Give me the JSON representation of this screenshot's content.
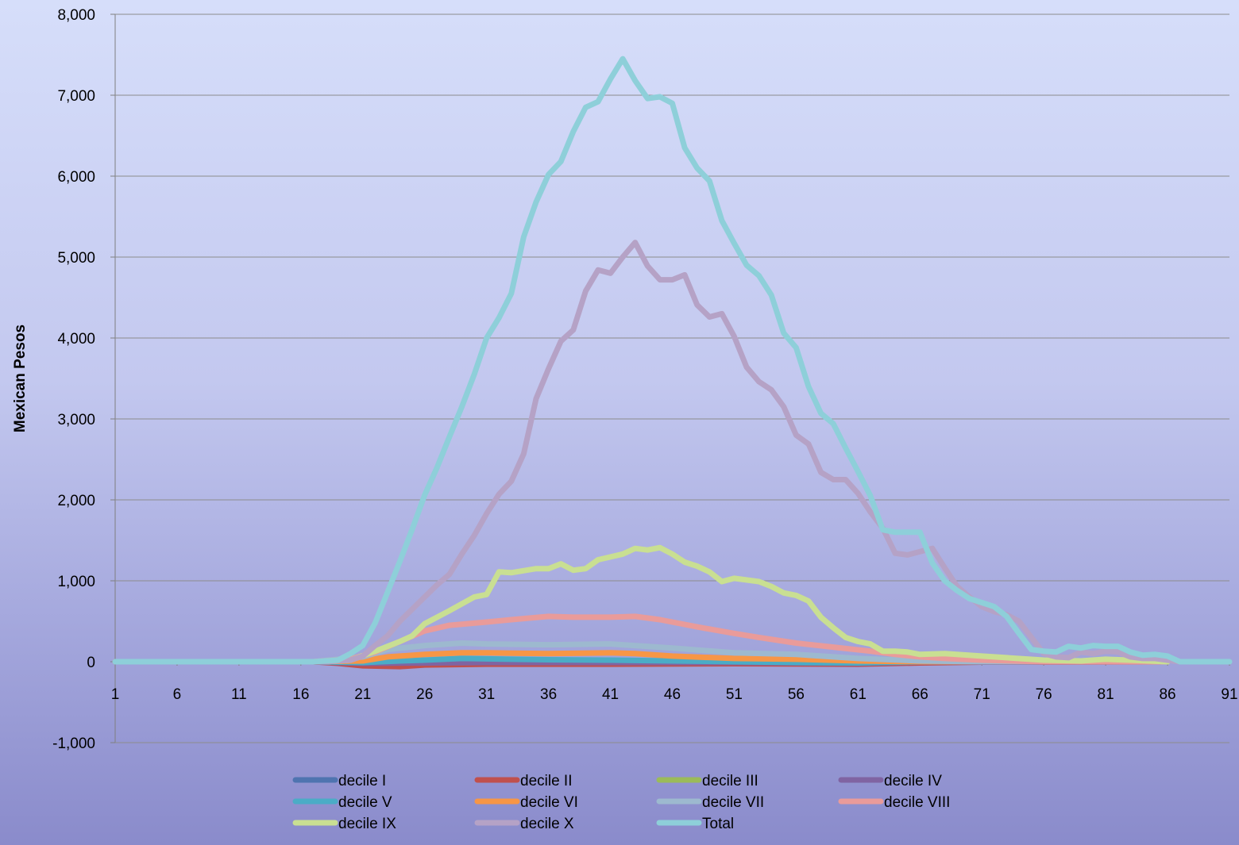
{
  "chart_data": {
    "type": "line",
    "title": "",
    "xlabel": "",
    "ylabel": "Mexican Pesos",
    "ylim": [
      -1000,
      8000
    ],
    "xlim": [
      1,
      91
    ],
    "x_ticks": [
      1,
      6,
      11,
      16,
      21,
      26,
      31,
      36,
      41,
      46,
      51,
      56,
      61,
      66,
      71,
      76,
      81,
      86,
      91
    ],
    "y_ticks": [
      -1000,
      0,
      1000,
      2000,
      3000,
      4000,
      5000,
      6000,
      7000,
      8000
    ],
    "y_tick_labels": [
      "-1,000",
      "0",
      "1,000",
      "2,000",
      "3,000",
      "4,000",
      "5,000",
      "6,000",
      "7,000",
      "8,000"
    ],
    "grid": "horizontal",
    "legend_position": "bottom",
    "series": [
      {
        "name": "decile I",
        "color": "#4f74b0",
        "points": [
          [
            1,
            0
          ],
          [
            17,
            0
          ],
          [
            20,
            -10
          ],
          [
            22,
            -30
          ],
          [
            26,
            -20
          ],
          [
            31,
            -15
          ],
          [
            41,
            -15
          ],
          [
            51,
            -20
          ],
          [
            61,
            -20
          ],
          [
            66,
            -10
          ],
          [
            71,
            0
          ],
          [
            86,
            0
          ]
        ]
      },
      {
        "name": "decile II",
        "color": "#c0504d",
        "points": [
          [
            1,
            0
          ],
          [
            17,
            0
          ],
          [
            19,
            -20
          ],
          [
            21,
            -50
          ],
          [
            24,
            -60
          ],
          [
            26,
            -40
          ],
          [
            31,
            -30
          ],
          [
            41,
            -30
          ],
          [
            51,
            -25
          ],
          [
            61,
            -30
          ],
          [
            66,
            -15
          ],
          [
            71,
            -5
          ],
          [
            86,
            0
          ]
        ]
      },
      {
        "name": "decile III",
        "color": "#9bbb59",
        "points": [
          [
            1,
            0
          ],
          [
            17,
            0
          ],
          [
            21,
            -10
          ],
          [
            26,
            -10
          ],
          [
            31,
            0
          ],
          [
            41,
            -5
          ],
          [
            51,
            -5
          ],
          [
            61,
            -10
          ],
          [
            66,
            0
          ],
          [
            86,
            0
          ]
        ]
      },
      {
        "name": "decile IV",
        "color": "#8064a2",
        "points": [
          [
            1,
            0
          ],
          [
            17,
            0
          ],
          [
            21,
            -20
          ],
          [
            26,
            -15
          ],
          [
            31,
            -10
          ],
          [
            41,
            -10
          ],
          [
            51,
            -10
          ],
          [
            61,
            -20
          ],
          [
            66,
            -5
          ],
          [
            86,
            0
          ]
        ]
      },
      {
        "name": "decile V",
        "color": "#4bacc6",
        "points": [
          [
            1,
            0
          ],
          [
            17,
            0
          ],
          [
            21,
            -10
          ],
          [
            24,
            10
          ],
          [
            26,
            20
          ],
          [
            29,
            40
          ],
          [
            31,
            35
          ],
          [
            36,
            25
          ],
          [
            41,
            20
          ],
          [
            46,
            10
          ],
          [
            51,
            0
          ],
          [
            56,
            -10
          ],
          [
            61,
            -15
          ],
          [
            66,
            0
          ],
          [
            86,
            0
          ]
        ]
      },
      {
        "name": "decile VI",
        "color": "#f79646",
        "points": [
          [
            1,
            0
          ],
          [
            17,
            0
          ],
          [
            21,
            10
          ],
          [
            23,
            60
          ],
          [
            26,
            90
          ],
          [
            29,
            110
          ],
          [
            31,
            110
          ],
          [
            36,
            100
          ],
          [
            41,
            110
          ],
          [
            43,
            100
          ],
          [
            46,
            70
          ],
          [
            51,
            40
          ],
          [
            56,
            30
          ],
          [
            61,
            10
          ],
          [
            66,
            0
          ],
          [
            71,
            0
          ],
          [
            86,
            0
          ]
        ]
      },
      {
        "name": "decile VII",
        "color": "#9db9cf",
        "points": [
          [
            1,
            0
          ],
          [
            17,
            0
          ],
          [
            21,
            60
          ],
          [
            23,
            150
          ],
          [
            26,
            200
          ],
          [
            29,
            230
          ],
          [
            31,
            220
          ],
          [
            36,
            210
          ],
          [
            41,
            220
          ],
          [
            46,
            170
          ],
          [
            51,
            110
          ],
          [
            56,
            90
          ],
          [
            61,
            40
          ],
          [
            66,
            10
          ],
          [
            71,
            0
          ],
          [
            86,
            0
          ]
        ]
      },
      {
        "name": "decile VIII",
        "color": "#e99b9a",
        "points": [
          [
            1,
            0
          ],
          [
            17,
            0
          ],
          [
            20,
            30
          ],
          [
            22,
            120
          ],
          [
            24,
            250
          ],
          [
            26,
            380
          ],
          [
            28,
            450
          ],
          [
            31,
            490
          ],
          [
            33,
            520
          ],
          [
            36,
            560
          ],
          [
            38,
            550
          ],
          [
            41,
            550
          ],
          [
            43,
            560
          ],
          [
            45,
            520
          ],
          [
            48,
            430
          ],
          [
            51,
            350
          ],
          [
            53,
            300
          ],
          [
            56,
            230
          ],
          [
            59,
            180
          ],
          [
            62,
            130
          ],
          [
            64,
            90
          ],
          [
            66,
            60
          ],
          [
            68,
            40
          ],
          [
            71,
            20
          ],
          [
            76,
            0
          ],
          [
            86,
            0
          ]
        ]
      },
      {
        "name": "decile IX",
        "color": "#c9df92",
        "points": [
          [
            1,
            0
          ],
          [
            18,
            0
          ],
          [
            20,
            20
          ],
          [
            22,
            130
          ],
          [
            24,
            250
          ],
          [
            25,
            320
          ],
          [
            26,
            470
          ],
          [
            28,
            630
          ],
          [
            30,
            800
          ],
          [
            31,
            830
          ],
          [
            32,
            1110
          ],
          [
            33,
            1100
          ],
          [
            35,
            1150
          ],
          [
            36,
            1150
          ],
          [
            37,
            1210
          ],
          [
            38,
            1130
          ],
          [
            39,
            1150
          ],
          [
            40,
            1260
          ],
          [
            42,
            1330
          ],
          [
            43,
            1400
          ],
          [
            44,
            1380
          ],
          [
            45,
            1410
          ],
          [
            46,
            1330
          ],
          [
            47,
            1230
          ],
          [
            48,
            1180
          ],
          [
            49,
            1110
          ],
          [
            50,
            990
          ],
          [
            51,
            1030
          ],
          [
            53,
            990
          ],
          [
            54,
            930
          ],
          [
            55,
            850
          ],
          [
            56,
            820
          ],
          [
            57,
            750
          ],
          [
            58,
            550
          ],
          [
            59,
            420
          ],
          [
            60,
            300
          ],
          [
            61,
            250
          ],
          [
            62,
            220
          ],
          [
            63,
            130
          ],
          [
            64,
            130
          ],
          [
            65,
            120
          ],
          [
            66,
            90
          ],
          [
            68,
            100
          ],
          [
            71,
            70
          ],
          [
            73,
            50
          ],
          [
            76,
            20
          ],
          [
            79,
            10
          ],
          [
            81,
            30
          ],
          [
            83,
            20
          ],
          [
            86,
            0
          ]
        ]
      },
      {
        "name": "decile X",
        "color": "#b5a2c6",
        "points": [
          [
            1,
            0
          ],
          [
            18,
            0
          ],
          [
            20,
            20
          ],
          [
            21,
            70
          ],
          [
            22,
            200
          ],
          [
            23,
            320
          ],
          [
            24,
            500
          ],
          [
            25,
            650
          ],
          [
            26,
            800
          ],
          [
            27,
            950
          ],
          [
            28,
            1080
          ],
          [
            29,
            1330
          ],
          [
            30,
            1560
          ],
          [
            31,
            1830
          ],
          [
            32,
            2070
          ],
          [
            33,
            2230
          ],
          [
            34,
            2570
          ],
          [
            35,
            3250
          ],
          [
            36,
            3620
          ],
          [
            37,
            3960
          ],
          [
            38,
            4100
          ],
          [
            39,
            4580
          ],
          [
            40,
            4840
          ],
          [
            41,
            4800
          ],
          [
            42,
            5000
          ],
          [
            43,
            5180
          ],
          [
            44,
            4890
          ],
          [
            45,
            4720
          ],
          [
            46,
            4720
          ],
          [
            47,
            4780
          ],
          [
            48,
            4410
          ],
          [
            49,
            4260
          ],
          [
            50,
            4300
          ],
          [
            51,
            4020
          ],
          [
            52,
            3640
          ],
          [
            53,
            3460
          ],
          [
            54,
            3360
          ],
          [
            55,
            3150
          ],
          [
            56,
            2800
          ],
          [
            57,
            2690
          ],
          [
            58,
            2340
          ],
          [
            59,
            2250
          ],
          [
            60,
            2250
          ],
          [
            61,
            2080
          ],
          [
            62,
            1850
          ],
          [
            63,
            1650
          ],
          [
            64,
            1340
          ],
          [
            65,
            1320
          ],
          [
            66,
            1360
          ],
          [
            67,
            1400
          ],
          [
            68,
            1160
          ],
          [
            69,
            930
          ],
          [
            70,
            800
          ],
          [
            71,
            680
          ],
          [
            72,
            620
          ],
          [
            73,
            580
          ],
          [
            74,
            500
          ],
          [
            75,
            300
          ],
          [
            76,
            100
          ],
          [
            77,
            60
          ],
          [
            78,
            50
          ],
          [
            79,
            120
          ],
          [
            80,
            100
          ],
          [
            81,
            130
          ],
          [
            82,
            120
          ],
          [
            83,
            60
          ],
          [
            84,
            40
          ],
          [
            85,
            40
          ],
          [
            86,
            20
          ],
          [
            87,
            0
          ],
          [
            91,
            0
          ]
        ]
      },
      {
        "name": "Total",
        "color": "#8ecfd9",
        "points": [
          [
            1,
            0
          ],
          [
            17,
            0
          ],
          [
            19,
            20
          ],
          [
            20,
            100
          ],
          [
            21,
            200
          ],
          [
            22,
            480
          ],
          [
            23,
            860
          ],
          [
            24,
            1240
          ],
          [
            25,
            1640
          ],
          [
            26,
            2060
          ],
          [
            27,
            2400
          ],
          [
            28,
            2780
          ],
          [
            29,
            3150
          ],
          [
            30,
            3550
          ],
          [
            31,
            4000
          ],
          [
            32,
            4250
          ],
          [
            33,
            4550
          ],
          [
            34,
            5250
          ],
          [
            35,
            5680
          ],
          [
            36,
            6020
          ],
          [
            37,
            6180
          ],
          [
            38,
            6550
          ],
          [
            39,
            6850
          ],
          [
            40,
            6920
          ],
          [
            41,
            7200
          ],
          [
            42,
            7450
          ],
          [
            43,
            7180
          ],
          [
            44,
            6960
          ],
          [
            45,
            6980
          ],
          [
            46,
            6900
          ],
          [
            47,
            6350
          ],
          [
            48,
            6100
          ],
          [
            49,
            5940
          ],
          [
            50,
            5450
          ],
          [
            51,
            5170
          ],
          [
            52,
            4900
          ],
          [
            53,
            4770
          ],
          [
            54,
            4530
          ],
          [
            55,
            4060
          ],
          [
            56,
            3880
          ],
          [
            57,
            3400
          ],
          [
            58,
            3070
          ],
          [
            59,
            2940
          ],
          [
            60,
            2640
          ],
          [
            61,
            2350
          ],
          [
            62,
            2050
          ],
          [
            63,
            1630
          ],
          [
            64,
            1600
          ],
          [
            66,
            1600
          ],
          [
            67,
            1220
          ],
          [
            68,
            1000
          ],
          [
            69,
            880
          ],
          [
            70,
            780
          ],
          [
            71,
            730
          ],
          [
            72,
            680
          ],
          [
            73,
            560
          ],
          [
            74,
            350
          ],
          [
            75,
            150
          ],
          [
            76,
            130
          ],
          [
            77,
            120
          ],
          [
            78,
            190
          ],
          [
            79,
            170
          ],
          [
            80,
            200
          ],
          [
            81,
            190
          ],
          [
            82,
            190
          ],
          [
            83,
            120
          ],
          [
            84,
            80
          ],
          [
            85,
            90
          ],
          [
            86,
            70
          ],
          [
            87,
            0
          ],
          [
            91,
            0
          ]
        ]
      }
    ]
  }
}
